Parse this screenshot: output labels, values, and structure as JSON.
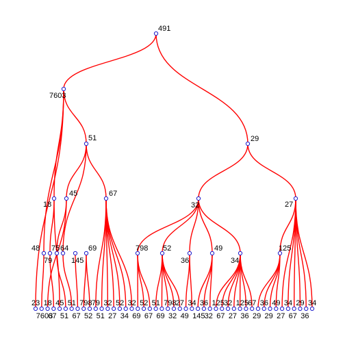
{
  "colors": {
    "edge": "#ff0000",
    "node_stroke": "#1a1acc",
    "node_fill": "#ffffff",
    "label": "#000000"
  },
  "labels": {
    "root": "491",
    "n7603": "7603",
    "n51": "51",
    "n29": "29",
    "n18": "18",
    "n45": "45",
    "n67": "67",
    "n32": "32",
    "n27": "27",
    "n48": "48",
    "n79": "79",
    "n75": "75",
    "n64": "64",
    "n145": "145",
    "n69": "69",
    "n798": "798",
    "n52": "52",
    "n36": "36",
    "n49": "49",
    "n34": "34",
    "n125": "125"
  },
  "leaf_labels": [
    "23",
    "7603",
    "18",
    "67",
    "45",
    "51",
    "51",
    "67",
    "798",
    "52",
    "79",
    "51",
    "32",
    "27",
    "52",
    "34",
    "32",
    "69",
    "52",
    "67",
    "51",
    "69",
    "798",
    "32",
    "27",
    "49",
    "34",
    "145",
    "36",
    "32",
    "125",
    "67",
    "32",
    "27",
    "125",
    "36",
    "67",
    "29",
    "36",
    "29",
    "49",
    "27",
    "34",
    "67",
    "29",
    "36",
    "34"
  ]
}
